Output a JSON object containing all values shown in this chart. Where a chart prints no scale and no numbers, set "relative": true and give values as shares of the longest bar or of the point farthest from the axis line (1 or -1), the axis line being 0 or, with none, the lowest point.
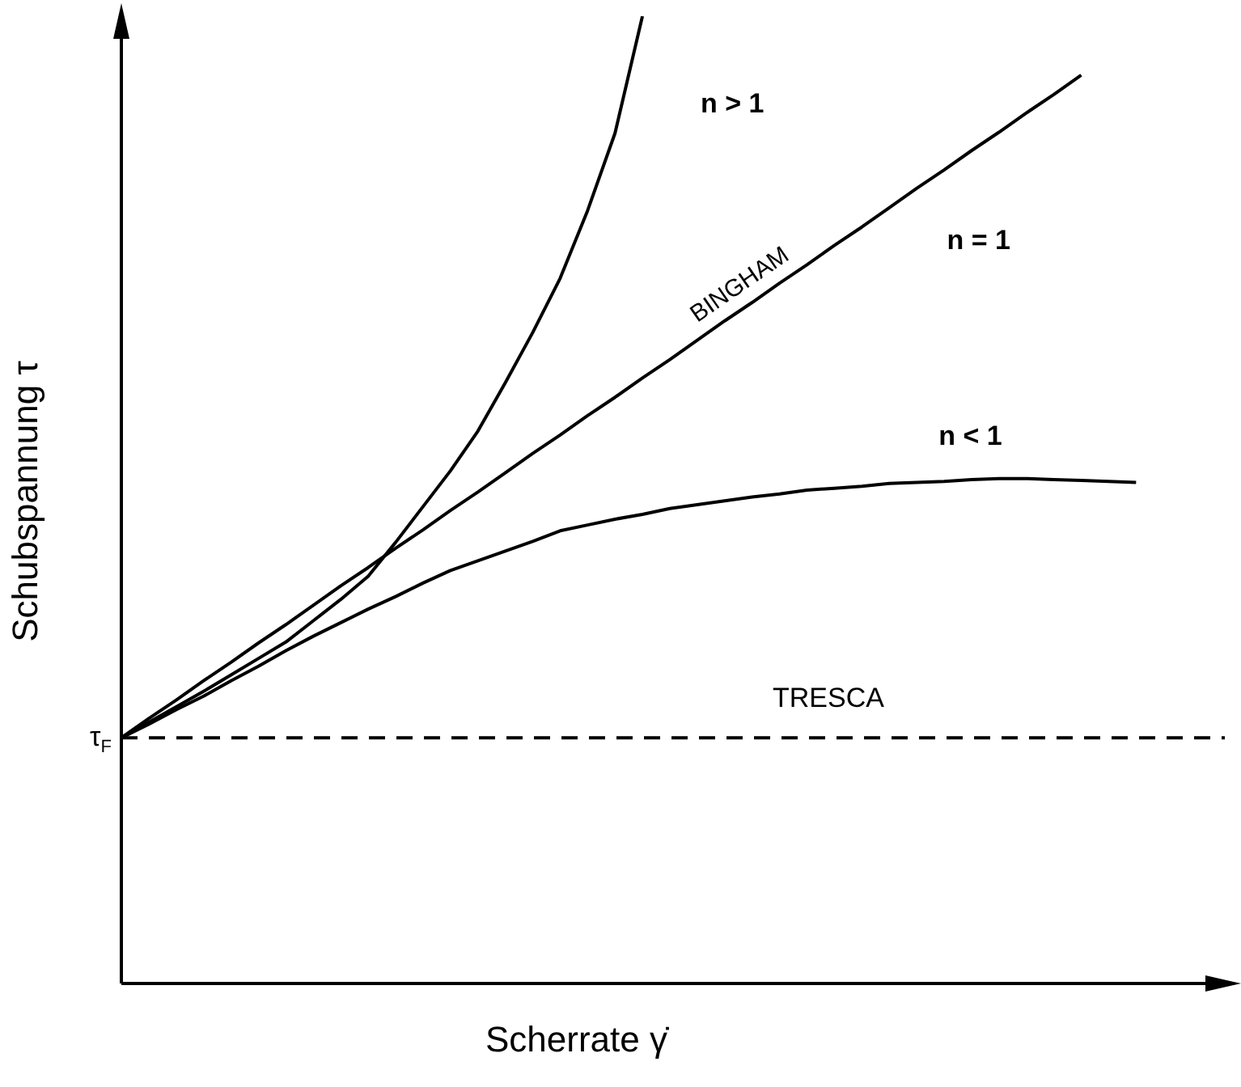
{
  "chart_data": {
    "type": "line",
    "relative": true,
    "xlabel": "Scherrate  γ̇",
    "ylabel": "Schubspannung  τ",
    "legend": false,
    "marker": "none",
    "line_style": "solid",
    "categories": [
      null,
      null,
      null,
      null,
      null,
      null,
      null,
      null,
      null,
      null,
      null,
      null,
      null,
      null,
      null,
      null,
      null,
      null,
      null,
      null,
      null,
      null,
      null,
      null,
      null,
      null,
      null,
      null,
      null,
      null,
      null,
      null,
      null,
      null,
      null,
      null,
      null,
      null,
      null,
      null,
      null
    ],
    "series": [
      {
        "name": "n > 1",
        "color": "#000000",
        "values": [
          0.254,
          0.27,
          0.286,
          0.302,
          0.319,
          0.336,
          0.353,
          0.375,
          0.397,
          0.421,
          0.456,
          0.493,
          0.53,
          0.571,
          0.621,
          0.673,
          0.729,
          0.799,
          0.879,
          1.0,
          null,
          null,
          null,
          null,
          null,
          null,
          null,
          null,
          null,
          null,
          null,
          null,
          null,
          null,
          null,
          null,
          null,
          null,
          null,
          null,
          null
        ]
      },
      {
        "name": "n = 1",
        "color": "#000000",
        "values": [
          0.254,
          0.274,
          0.293,
          0.313,
          0.332,
          0.352,
          0.371,
          0.391,
          0.411,
          0.43,
          0.45,
          0.469,
          0.489,
          0.508,
          0.528,
          0.548,
          0.567,
          0.587,
          0.606,
          0.626,
          0.645,
          0.665,
          0.685,
          0.704,
          0.724,
          0.743,
          0.763,
          0.782,
          0.802,
          0.822,
          0.841,
          0.861,
          0.88,
          0.9,
          0.919,
          0.939,
          null,
          null,
          null,
          null,
          null
        ]
      },
      {
        "name": "n < 1",
        "color": "#000000",
        "values": [
          0.254,
          0.268,
          0.283,
          0.297,
          0.313,
          0.328,
          0.344,
          0.359,
          0.373,
          0.387,
          0.4,
          0.414,
          0.427,
          0.437,
          0.447,
          0.457,
          0.468,
          0.474,
          0.48,
          0.485,
          0.491,
          0.495,
          0.499,
          0.503,
          0.506,
          0.51,
          0.512,
          0.514,
          0.517,
          0.518,
          0.519,
          0.521,
          0.522,
          0.522,
          0.521,
          0.52,
          0.519,
          0.518,
          null,
          null,
          null
        ]
      }
    ],
    "ref_lines": [
      {
        "axis": "y",
        "value": 0.254,
        "label": "TRESCA",
        "color": "#000000",
        "line_style": "dashed"
      }
    ],
    "annotations": [
      "BINGHAM",
      "τ$_{F}$"
    ]
  }
}
